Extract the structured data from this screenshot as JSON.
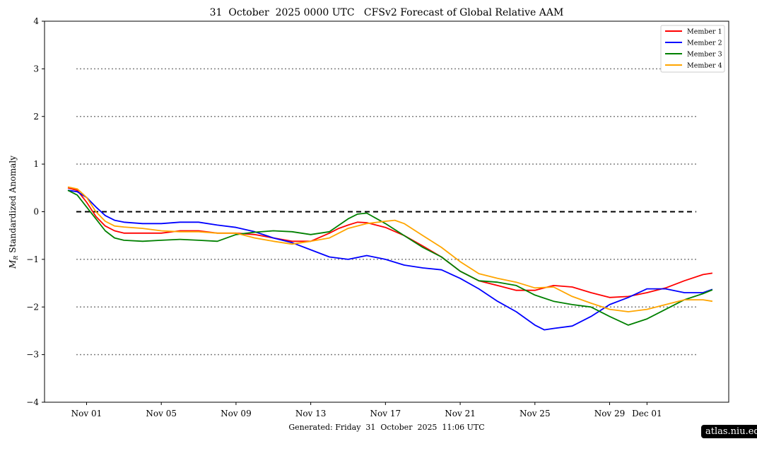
{
  "chart_data": {
    "type": "line",
    "title": "31  October  2025 0000 UTC   CFSv2 Forecast of Global Relative AAM",
    "ylabel": "M_R Standardized Anomaly",
    "ylabel_main": "M",
    "ylabel_sub": "R",
    "ylabel_rest": " Standardized Anomaly",
    "footer": "Generated: Friday  31  October  2025  11:06 UTC",
    "ylim": [
      -4,
      4
    ],
    "yticks": [
      -4,
      -3,
      -2,
      -1,
      0,
      1,
      2,
      3,
      4
    ],
    "ytick_labels": [
      "−4",
      "−3",
      "−2",
      "−1",
      "0",
      "1",
      "2",
      "3",
      "4"
    ],
    "xlim": [
      "2025-10-29T18:00",
      "2025-12-05T09:00"
    ],
    "xticks": [
      {
        "date": "2025-11-01",
        "label": "Nov 01"
      },
      {
        "date": "2025-11-05",
        "label": "Nov 05"
      },
      {
        "date": "2025-11-09",
        "label": "Nov 09"
      },
      {
        "date": "2025-11-13",
        "label": "Nov 13"
      },
      {
        "date": "2025-11-17",
        "label": "Nov 17"
      },
      {
        "date": "2025-11-21",
        "label": "Nov 21"
      },
      {
        "date": "2025-11-25",
        "label": "Nov 25"
      },
      {
        "date": "2025-11-29",
        "label": "Nov 29"
      },
      {
        "date": "2025-12-01",
        "label": "Dec 01"
      }
    ],
    "reference_lines": [
      {
        "y": 0,
        "style": "dashed",
        "color": "#000000"
      },
      {
        "y": 1,
        "style": "dotted",
        "color": "#808080"
      },
      {
        "y": 2,
        "style": "dotted",
        "color": "#808080"
      },
      {
        "y": 3,
        "style": "dotted",
        "color": "#808080"
      },
      {
        "y": -1,
        "style": "dotted",
        "color": "#808080"
      },
      {
        "y": -2,
        "style": "dotted",
        "color": "#808080"
      },
      {
        "y": -3,
        "style": "dotted",
        "color": "#808080"
      }
    ],
    "legend_position": "top-right",
    "grid": false,
    "series": [
      {
        "name": "Member 1",
        "color": "#ff0000",
        "x": [
          "2025-10-31T00:00",
          "2025-10-31T12:00",
          "2025-11-01T00:00",
          "2025-11-01T12:00",
          "2025-11-02T00:00",
          "2025-11-02T12:00",
          "2025-11-03T00:00",
          "2025-11-04T00:00",
          "2025-11-05T00:00",
          "2025-11-06T00:00",
          "2025-11-07T00:00",
          "2025-11-08T00:00",
          "2025-11-09T00:00",
          "2025-11-10T00:00",
          "2025-11-11T00:00",
          "2025-11-12T00:00",
          "2025-11-13T00:00",
          "2025-11-14T00:00",
          "2025-11-14T12:00",
          "2025-11-15T00:00",
          "2025-11-15T12:00",
          "2025-11-16T00:00",
          "2025-11-17T00:00",
          "2025-11-18T00:00",
          "2025-11-19T00:00",
          "2025-11-20T00:00",
          "2025-11-21T00:00",
          "2025-11-22T00:00",
          "2025-11-23T00:00",
          "2025-11-24T00:00",
          "2025-11-25T00:00",
          "2025-11-26T00:00",
          "2025-11-27T00:00",
          "2025-11-28T00:00",
          "2025-11-29T00:00",
          "2025-11-30T00:00",
          "2025-12-01T00:00",
          "2025-12-02T00:00",
          "2025-12-03T00:00",
          "2025-12-04T00:00",
          "2025-12-04T12:00"
        ],
        "values": [
          0.5,
          0.45,
          0.2,
          -0.1,
          -0.3,
          -0.4,
          -0.45,
          -0.45,
          -0.45,
          -0.4,
          -0.4,
          -0.45,
          -0.45,
          -0.48,
          -0.55,
          -0.62,
          -0.62,
          -0.45,
          -0.35,
          -0.28,
          -0.22,
          -0.23,
          -0.33,
          -0.5,
          -0.72,
          -0.95,
          -1.25,
          -1.45,
          -1.55,
          -1.65,
          -1.65,
          -1.55,
          -1.58,
          -1.7,
          -1.8,
          -1.78,
          -1.7,
          -1.6,
          -1.45,
          -1.32,
          -1.29
        ]
      },
      {
        "name": "Member 2",
        "color": "#0000ff",
        "x": [
          "2025-10-31T00:00",
          "2025-10-31T12:00",
          "2025-11-01T00:00",
          "2025-11-01T12:00",
          "2025-11-02T00:00",
          "2025-11-02T12:00",
          "2025-11-03T00:00",
          "2025-11-04T00:00",
          "2025-11-05T00:00",
          "2025-11-06T00:00",
          "2025-11-07T00:00",
          "2025-11-08T00:00",
          "2025-11-09T00:00",
          "2025-11-10T00:00",
          "2025-11-11T00:00",
          "2025-11-12T00:00",
          "2025-11-13T00:00",
          "2025-11-14T00:00",
          "2025-11-15T00:00",
          "2025-11-16T00:00",
          "2025-11-17T00:00",
          "2025-11-18T00:00",
          "2025-11-19T00:00",
          "2025-11-20T00:00",
          "2025-11-21T00:00",
          "2025-11-22T00:00",
          "2025-11-23T00:00",
          "2025-11-24T00:00",
          "2025-11-25T00:00",
          "2025-11-25T12:00",
          "2025-11-26T00:00",
          "2025-11-27T00:00",
          "2025-11-28T00:00",
          "2025-11-29T00:00",
          "2025-11-30T00:00",
          "2025-12-01T00:00",
          "2025-12-02T00:00",
          "2025-12-03T00:00",
          "2025-12-04T00:00",
          "2025-12-04T12:00"
        ],
        "values": [
          0.45,
          0.42,
          0.3,
          0.1,
          -0.08,
          -0.18,
          -0.22,
          -0.25,
          -0.25,
          -0.22,
          -0.22,
          -0.28,
          -0.33,
          -0.42,
          -0.55,
          -0.65,
          -0.8,
          -0.95,
          -1.0,
          -0.92,
          -1.0,
          -1.12,
          -1.18,
          -1.22,
          -1.4,
          -1.62,
          -1.88,
          -2.1,
          -2.38,
          -2.48,
          -2.45,
          -2.4,
          -2.2,
          -1.95,
          -1.8,
          -1.62,
          -1.62,
          -1.7,
          -1.7,
          -1.63
        ]
      },
      {
        "name": "Member 3",
        "color": "#008000",
        "x": [
          "2025-10-31T00:00",
          "2025-10-31T12:00",
          "2025-11-01T00:00",
          "2025-11-01T12:00",
          "2025-11-02T00:00",
          "2025-11-02T12:00",
          "2025-11-03T00:00",
          "2025-11-04T00:00",
          "2025-11-05T00:00",
          "2025-11-06T00:00",
          "2025-11-07T00:00",
          "2025-11-08T00:00",
          "2025-11-09T00:00",
          "2025-11-10T00:00",
          "2025-11-11T00:00",
          "2025-11-12T00:00",
          "2025-11-13T00:00",
          "2025-11-14T00:00",
          "2025-11-15T00:00",
          "2025-11-15T12:00",
          "2025-11-16T00:00",
          "2025-11-17T00:00",
          "2025-11-18T00:00",
          "2025-11-19T00:00",
          "2025-11-20T00:00",
          "2025-11-21T00:00",
          "2025-11-22T00:00",
          "2025-11-23T00:00",
          "2025-11-24T00:00",
          "2025-11-25T00:00",
          "2025-11-26T00:00",
          "2025-11-27T00:00",
          "2025-11-28T00:00",
          "2025-11-29T00:00",
          "2025-11-30T00:00",
          "2025-12-01T00:00",
          "2025-12-02T00:00",
          "2025-12-03T00:00",
          "2025-12-04T00:00",
          "2025-12-04T12:00"
        ],
        "values": [
          0.45,
          0.35,
          0.1,
          -0.15,
          -0.4,
          -0.55,
          -0.6,
          -0.62,
          -0.6,
          -0.58,
          -0.6,
          -0.62,
          -0.48,
          -0.43,
          -0.4,
          -0.42,
          -0.48,
          -0.42,
          -0.15,
          -0.05,
          -0.03,
          -0.25,
          -0.5,
          -0.75,
          -0.95,
          -1.25,
          -1.45,
          -1.48,
          -1.55,
          -1.75,
          -1.88,
          -1.95,
          -2.0,
          -2.2,
          -2.38,
          -2.25,
          -2.05,
          -1.85,
          -1.72,
          -1.64
        ]
      },
      {
        "name": "Member 4",
        "color": "#ffa500",
        "x": [
          "2025-10-31T00:00",
          "2025-10-31T12:00",
          "2025-11-01T00:00",
          "2025-11-01T12:00",
          "2025-11-02T00:00",
          "2025-11-02T12:00",
          "2025-11-03T00:00",
          "2025-11-04T00:00",
          "2025-11-05T00:00",
          "2025-11-06T00:00",
          "2025-11-07T00:00",
          "2025-11-08T00:00",
          "2025-11-09T00:00",
          "2025-11-10T00:00",
          "2025-11-11T00:00",
          "2025-11-12T00:00",
          "2025-11-13T00:00",
          "2025-11-14T00:00",
          "2025-11-15T00:00",
          "2025-11-16T00:00",
          "2025-11-17T00:00",
          "2025-11-17T12:00",
          "2025-11-18T00:00",
          "2025-11-19T00:00",
          "2025-11-20T00:00",
          "2025-11-21T00:00",
          "2025-11-22T00:00",
          "2025-11-23T00:00",
          "2025-11-24T00:00",
          "2025-11-25T00:00",
          "2025-11-26T00:00",
          "2025-11-27T00:00",
          "2025-11-28T00:00",
          "2025-11-29T00:00",
          "2025-11-30T00:00",
          "2025-12-01T00:00",
          "2025-12-02T00:00",
          "2025-12-03T00:00",
          "2025-12-04T00:00",
          "2025-12-04T12:00"
        ],
        "values": [
          0.52,
          0.48,
          0.3,
          0.0,
          -0.2,
          -0.3,
          -0.32,
          -0.35,
          -0.4,
          -0.42,
          -0.42,
          -0.45,
          -0.45,
          -0.55,
          -0.62,
          -0.68,
          -0.62,
          -0.55,
          -0.35,
          -0.25,
          -0.2,
          -0.18,
          -0.25,
          -0.5,
          -0.75,
          -1.05,
          -1.3,
          -1.4,
          -1.48,
          -1.6,
          -1.58,
          -1.78,
          -1.92,
          -2.05,
          -2.1,
          -2.05,
          -1.95,
          -1.85,
          -1.85,
          -1.88
        ]
      }
    ]
  },
  "watermark": "atlas.niu.edu"
}
